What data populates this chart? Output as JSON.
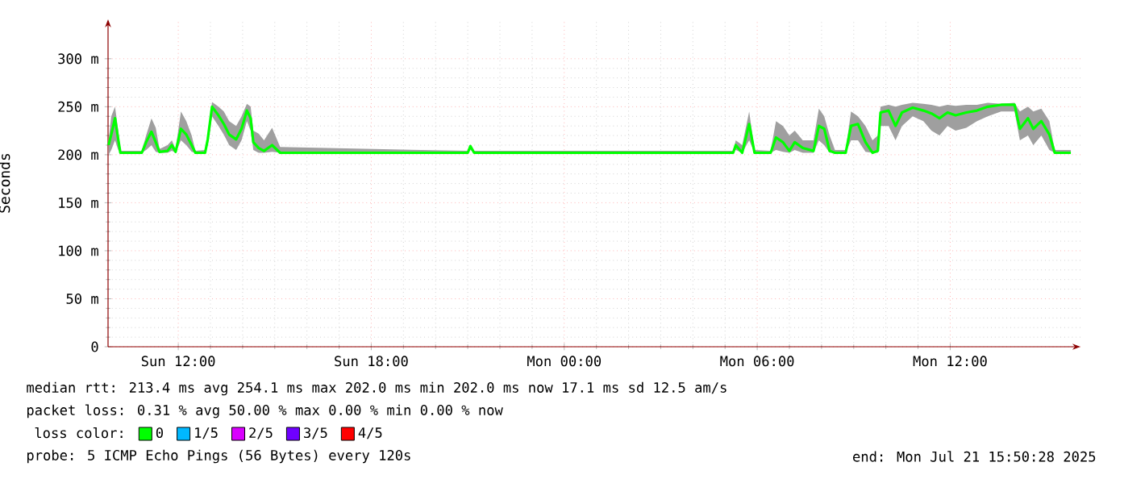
{
  "chart_data": {
    "type": "line",
    "ylabel": "Seconds",
    "x": [
      "2025-07-20T09:50",
      "2025-07-20T09:55",
      "2025-07-20T10:02",
      "2025-07-20T10:08",
      "2025-07-20T10:12",
      "2025-07-20T10:52",
      "2025-07-20T11:00",
      "2025-07-20T11:10",
      "2025-07-20T11:18",
      "2025-07-20T11:25",
      "2025-07-20T11:40",
      "2025-07-20T11:48",
      "2025-07-20T11:55",
      "2025-07-20T12:05",
      "2025-07-20T12:15",
      "2025-07-20T12:25",
      "2025-07-20T12:32",
      "2025-07-20T12:50",
      "2025-07-20T12:55",
      "2025-07-20T13:03",
      "2025-07-20T13:15",
      "2025-07-20T13:25",
      "2025-07-20T13:35",
      "2025-07-20T13:48",
      "2025-07-20T13:58",
      "2025-07-20T14:08",
      "2025-07-20T14:15",
      "2025-07-20T14:20",
      "2025-07-20T14:30",
      "2025-07-20T14:40",
      "2025-07-20T14:55",
      "2025-07-20T15:10",
      "2025-07-20T21:00",
      "2025-07-20T21:05",
      "2025-07-20T21:12",
      "2025-07-21T05:15",
      "2025-07-21T05:20",
      "2025-07-21T05:32",
      "2025-07-21T05:45",
      "2025-07-21T05:55",
      "2025-07-21T06:25",
      "2025-07-21T06:35",
      "2025-07-21T06:48",
      "2025-07-21T07:00",
      "2025-07-21T07:10",
      "2025-07-21T07:25",
      "2025-07-21T07:45",
      "2025-07-21T07:55",
      "2025-07-21T08:05",
      "2025-07-21T08:15",
      "2025-07-21T08:25",
      "2025-07-21T08:45",
      "2025-07-21T08:55",
      "2025-07-21T09:08",
      "2025-07-21T09:22",
      "2025-07-21T09:35",
      "2025-07-21T09:45",
      "2025-07-21T09:50",
      "2025-07-21T10:05",
      "2025-07-21T10:18",
      "2025-07-21T10:30",
      "2025-07-21T10:50",
      "2025-07-21T11:10",
      "2025-07-21T11:25",
      "2025-07-21T11:40",
      "2025-07-21T11:55",
      "2025-07-21T12:10",
      "2025-07-21T12:30",
      "2025-07-21T12:50",
      "2025-07-21T13:10",
      "2025-07-21T13:35",
      "2025-07-21T14:00",
      "2025-07-21T14:10",
      "2025-07-21T14:25",
      "2025-07-21T14:35",
      "2025-07-21T14:50",
      "2025-07-21T15:05",
      "2025-07-21T15:15",
      "2025-07-21T15:45"
    ],
    "series": [
      {
        "name": "0",
        "color": "#00ff00",
        "values": [
          210,
          221,
          238,
          216,
          202,
          202,
          213,
          224,
          213,
          203,
          204,
          210,
          203,
          227,
          221,
          210,
          202,
          202,
          216,
          250,
          241,
          232,
          221,
          216,
          227,
          246,
          238,
          213,
          207,
          204,
          210,
          202,
          202,
          209,
          202,
          202,
          210,
          202,
          232,
          202,
          202,
          218,
          213,
          204,
          213,
          207,
          204,
          230,
          227,
          204,
          202,
          202,
          230,
          232,
          213,
          202,
          204,
          244,
          246,
          230,
          244,
          249,
          246,
          243,
          238,
          244,
          241,
          244,
          246,
          250,
          252,
          252,
          227,
          238,
          227,
          235,
          221,
          202,
          202
        ],
        "lower": [
          200,
          205,
          215,
          205,
          202,
          202,
          205,
          210,
          203,
          202,
          202,
          204,
          202,
          215,
          210,
          203,
          202,
          202,
          210,
          240,
          230,
          221,
          210,
          205,
          215,
          235,
          225,
          205,
          202,
          202,
          203,
          202,
          202,
          205,
          202,
          202,
          205,
          202,
          215,
          202,
          202,
          205,
          203,
          202,
          205,
          202,
          202,
          215,
          210,
          202,
          203,
          202,
          215,
          215,
          203,
          202,
          202,
          230,
          230,
          215,
          230,
          240,
          235,
          225,
          220,
          230,
          225,
          228,
          235,
          240,
          245,
          245,
          215,
          220,
          210,
          220,
          205,
          202,
          202
        ],
        "upper": [
          215,
          240,
          250,
          225,
          204,
          204,
          220,
          238,
          228,
          206,
          210,
          215,
          206,
          245,
          235,
          220,
          204,
          205,
          220,
          255,
          250,
          245,
          235,
          230,
          240,
          253,
          250,
          225,
          222,
          215,
          228,
          208,
          204,
          210,
          204,
          204,
          215,
          210,
          245,
          205,
          204,
          235,
          230,
          220,
          225,
          215,
          215,
          248,
          240,
          220,
          205,
          205,
          245,
          240,
          230,
          215,
          220,
          250,
          252,
          250,
          252,
          254,
          253,
          252,
          250,
          252,
          251,
          252,
          252,
          254,
          253,
          254,
          245,
          250,
          245,
          248,
          235,
          205,
          205
        ]
      },
      {
        "name": "1/5",
        "color": "#00b8ff",
        "values": [
          null,
          null,
          null,
          null,
          null,
          null,
          null,
          null,
          null,
          null,
          null,
          null,
          null,
          null,
          null,
          null,
          null,
          null,
          null,
          null,
          null,
          null,
          null,
          null,
          null,
          null,
          null,
          null,
          null,
          null,
          null,
          null,
          null,
          null,
          null,
          null,
          null,
          null,
          null,
          null,
          null,
          null,
          null,
          null,
          null,
          null,
          null,
          null,
          null,
          null,
          null,
          null,
          null,
          null,
          null,
          null,
          null,
          null,
          null,
          null,
          null,
          null,
          null,
          null,
          null,
          null,
          null,
          null,
          null,
          null,
          null,
          null,
          null,
          null,
          null,
          null,
          null,
          null,
          null
        ]
      },
      {
        "name": "2/5",
        "color": "#d900ff",
        "values": [
          null,
          null,
          null,
          null,
          null,
          null,
          null,
          null,
          null,
          null,
          null,
          null,
          null,
          null,
          null,
          null,
          null,
          null,
          null,
          null,
          null,
          null,
          null,
          null,
          null,
          null,
          null,
          null,
          null,
          null,
          null,
          null,
          null,
          null,
          null,
          null,
          null,
          null,
          null,
          null,
          null,
          null,
          null,
          null,
          null,
          null,
          null,
          null,
          null,
          null,
          null,
          null,
          null,
          null,
          null,
          null,
          null,
          null,
          null,
          null,
          null,
          null,
          null,
          null,
          null,
          null,
          null,
          null,
          null,
          null,
          null,
          null,
          null,
          null,
          null,
          null,
          null,
          null,
          null
        ]
      },
      {
        "name": "3/5",
        "color": "#6f00ff",
        "values": [
          null,
          null,
          null,
          null,
          null,
          null,
          null,
          null,
          null,
          null,
          null,
          null,
          null,
          null,
          null,
          null,
          null,
          null,
          null,
          null,
          null,
          null,
          null,
          null,
          null,
          null,
          null,
          null,
          null,
          null,
          null,
          null,
          null,
          null,
          null,
          null,
          null,
          null,
          null,
          null,
          null,
          null,
          null,
          null,
          null,
          null,
          null,
          null,
          null,
          null,
          null,
          null,
          null,
          null,
          null,
          null,
          null,
          null,
          null,
          null,
          null,
          null,
          null,
          null,
          null,
          null,
          null,
          null,
          null,
          null,
          null,
          null,
          null,
          null,
          null,
          null,
          null,
          null,
          null
        ]
      },
      {
        "name": "4/5",
        "color": "#ff0000",
        "values": [
          null,
          null,
          null,
          null,
          null,
          null,
          null,
          null,
          null,
          null,
          null,
          null,
          null,
          null,
          null,
          null,
          null,
          null,
          null,
          null,
          null,
          null,
          null,
          null,
          null,
          null,
          null,
          null,
          null,
          null,
          null,
          null,
          null,
          null,
          null,
          null,
          null,
          null,
          null,
          null,
          null,
          null,
          null,
          null,
          null,
          null,
          null,
          null,
          null,
          null,
          null,
          null,
          null,
          null,
          null,
          null,
          null,
          null,
          null,
          null,
          null,
          null,
          null,
          null,
          null,
          null,
          null,
          null,
          null,
          null,
          null,
          null,
          null,
          null,
          null,
          null,
          null,
          null,
          null
        ]
      }
    ],
    "legend_title": "loss color:",
    "legend": "bottom",
    "xlim": [
      "2025-07-20T09:49",
      "2025-07-21T16:03"
    ],
    "xticks": [
      {
        "value": "2025-07-20T12:00",
        "label": "Sun 12:00"
      },
      {
        "value": "2025-07-20T18:00",
        "label": "Sun 18:00"
      },
      {
        "value": "2025-07-21T00:00",
        "label": "Mon 00:00"
      },
      {
        "value": "2025-07-21T06:00",
        "label": "Mon 06:00"
      },
      {
        "value": "2025-07-21T12:00",
        "label": "Mon 12:00"
      }
    ],
    "ylim": [
      0,
      341
    ],
    "yticks": [
      0,
      {
        "value": 50,
        "label": "50 m"
      },
      {
        "value": 100,
        "label": "100 m"
      },
      {
        "value": 150,
        "label": "150 m"
      },
      {
        "value": 200,
        "label": "200 m"
      },
      {
        "value": 250,
        "label": "250 m"
      },
      {
        "value": 300,
        "label": "300 m"
      }
    ],
    "grid": true,
    "annotations": [
      "median rtt: 213.4 ms avg 254.1 ms max 202.0 ms min 202.0 ms now 17.1 ms sd 12.5 am/s",
      "packet loss: 0.31 % avg 50.00 % max 0.00 % min 0.00 % now",
      "probe: 5 ICMP Echo Pings (56 Bytes) every 120s",
      "end: Mon Jul 21 15:50:28 2025"
    ]
  }
}
